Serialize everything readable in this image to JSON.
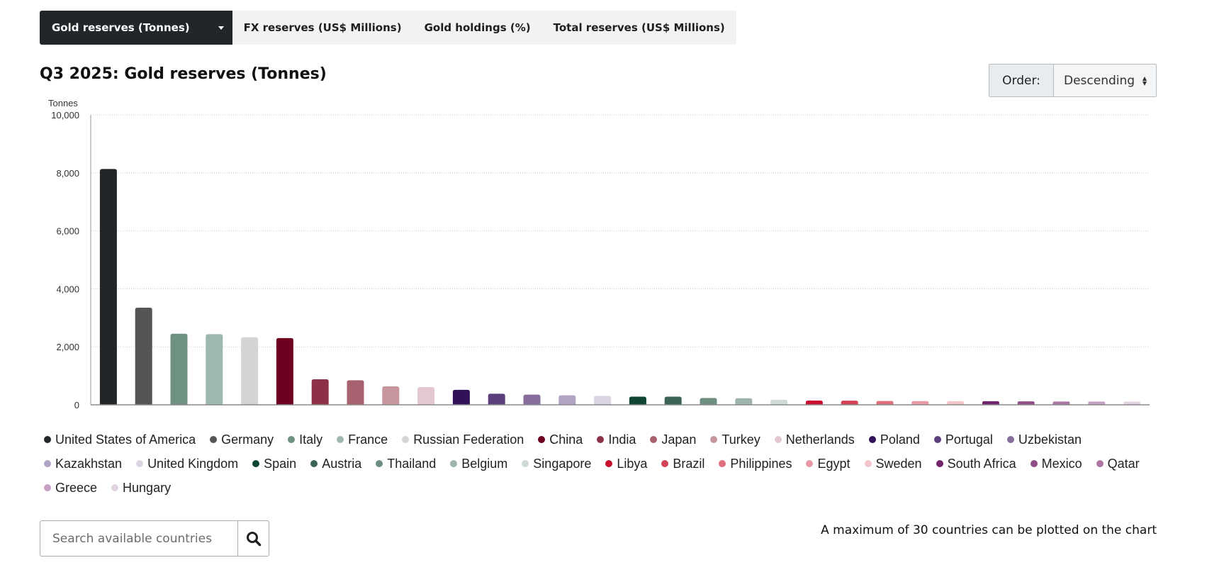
{
  "tabs": [
    {
      "label": "Gold reserves (Tonnes)",
      "active": true
    },
    {
      "label": "FX reserves (US$ Millions)",
      "active": false
    },
    {
      "label": "Gold holdings (%)",
      "active": false
    },
    {
      "label": "Total reserves (US$ Millions)",
      "active": false
    }
  ],
  "title": "Q3 2025: Gold reserves (Tonnes)",
  "order": {
    "label": "Order:",
    "value": "Descending"
  },
  "search": {
    "placeholder": "Search available countries"
  },
  "note": "A maximum of 30 countries can be plotted on the chart",
  "icons": {
    "tab_dropdown": "caret-down-icon",
    "order_select": "sort-updown-icon",
    "search_button": "search-icon"
  },
  "chart_data": {
    "type": "bar",
    "title": "Q3 2025: Gold reserves (Tonnes)",
    "ylabel": "Tonnes",
    "ylim": [
      0,
      10000
    ],
    "yticks": [
      "0",
      "2,000",
      "4,000",
      "6,000",
      "8,000",
      "10,000"
    ],
    "grid": true,
    "legend_position": "bottom",
    "categories": [
      "United States of America",
      "Germany",
      "Italy",
      "France",
      "Russian Federation",
      "China",
      "India",
      "Japan",
      "Turkey",
      "Netherlands",
      "Poland",
      "Portugal",
      "Uzbekistan",
      "Kazakhstan",
      "United Kingdom",
      "Spain",
      "Austria",
      "Thailand",
      "Belgium",
      "Singapore",
      "Libya",
      "Brazil",
      "Philippines",
      "Egypt",
      "Sweden",
      "South Africa",
      "Mexico",
      "Qatar",
      "Greece",
      "Hungary"
    ],
    "values": [
      8133,
      3350,
      2452,
      2437,
      2330,
      2300,
      880,
      846,
      635,
      612,
      516,
      383,
      350,
      326,
      310,
      282,
      280,
      234,
      227,
      175,
      147,
      145,
      130,
      128,
      126,
      125,
      120,
      112,
      114,
      110
    ],
    "colors": [
      "#222628",
      "#555555",
      "#6f9180",
      "#9fb8ad",
      "#d4d4d4",
      "#6e0020",
      "#8c3148",
      "#a8626f",
      "#c6959e",
      "#e3c9cf",
      "#311259",
      "#5b3e7c",
      "#866d9d",
      "#b1a3c2",
      "#dbd4e3",
      "#0e4434",
      "#3b6454",
      "#6c8f80",
      "#9fb5ab",
      "#cfdad4",
      "#c8102e",
      "#d44258",
      "#e06f80",
      "#e899a4",
      "#f2c6cc",
      "#72246c",
      "#904d88",
      "#aa77a4",
      "#c7a1c3",
      "#e2d2e0"
    ]
  }
}
